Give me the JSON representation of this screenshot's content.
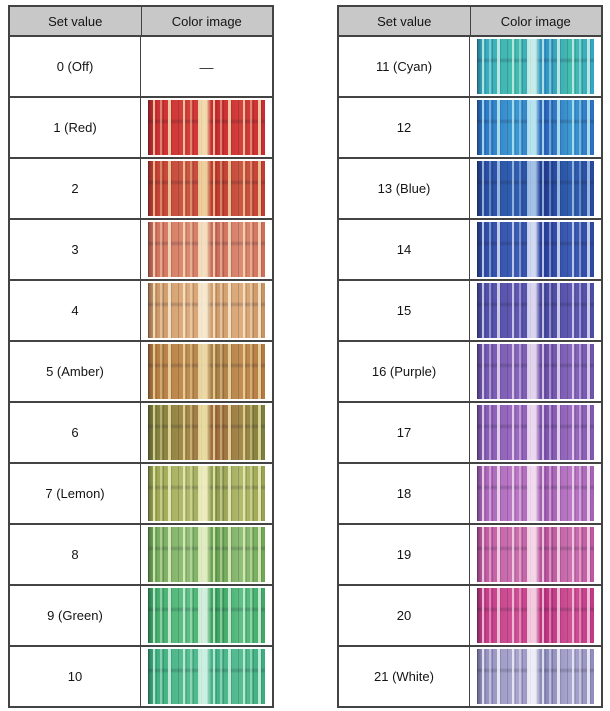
{
  "headers": {
    "set_value": "Set value",
    "color_image": "Color image"
  },
  "style": {
    "header_bg": "#c8c8c8",
    "border": "#434343",
    "text": "#141414",
    "page_bg": "#ffffff"
  },
  "tables": [
    {
      "id": "left",
      "rows": [
        {
          "label": "0 (Off)",
          "placeholder": "—",
          "image": null
        },
        {
          "label": "1 (Red)",
          "image": {
            "colors": [
              "#c92a30",
              "#d4403c",
              "#c92a30"
            ],
            "streak": "#f3e3b4"
          }
        },
        {
          "label": "2",
          "image": {
            "colors": [
              "#c33a30",
              "#cc5844",
              "#bf392f"
            ],
            "streak": "#f0d6a2"
          }
        },
        {
          "label": "3",
          "image": {
            "colors": [
              "#cf6c58",
              "#dd8c72",
              "#ca6a58"
            ],
            "streak": "#f5e3c4"
          }
        },
        {
          "label": "4",
          "image": {
            "colors": [
              "#c79260",
              "#e0ae7e",
              "#cf9c6c"
            ],
            "streak": "#f7ecd4"
          }
        },
        {
          "label": "5 (Amber)",
          "image": {
            "colors": [
              "#b3793f",
              "#c28e52",
              "#a97f46"
            ],
            "streak": "#eedcaa"
          }
        },
        {
          "label": "6",
          "image": {
            "colors": [
              "#79803c",
              "#a38a4a",
              "#a06a3e"
            ],
            "streak": "#ece0a6"
          }
        },
        {
          "label": "7 (Lemon)",
          "image": {
            "colors": [
              "#97a24c",
              "#b3bc6e",
              "#8d9c4e"
            ],
            "streak": "#f1efc2"
          }
        },
        {
          "label": "8",
          "image": {
            "colors": [
              "#6ca654",
              "#92c078",
              "#66a050"
            ],
            "streak": "#e6f0c6"
          }
        },
        {
          "label": "9 (Green)",
          "image": {
            "colors": [
              "#3da864",
              "#5fc186",
              "#3aa25e"
            ],
            "streak": "#d9f2e2"
          }
        },
        {
          "label": "10",
          "image": {
            "colors": [
              "#3aac7c",
              "#58be92",
              "#44b286"
            ],
            "streak": "#d2f2e6"
          }
        }
      ]
    },
    {
      "id": "right",
      "rows": [
        {
          "label": "11 (Cyan)",
          "image": {
            "colors": [
              "#34a6c4",
              "#46bfae",
              "#2f94c6"
            ],
            "streak": "#cff0ea"
          }
        },
        {
          "label": "12",
          "image": {
            "colors": [
              "#2b6ec2",
              "#3e9cd2",
              "#2a62ba"
            ],
            "streak": "#bfeaf2"
          }
        },
        {
          "label": "13 (Blue)",
          "image": {
            "colors": [
              "#27479c",
              "#3161b2",
              "#223c92"
            ],
            "streak": "#aac8ea"
          }
        },
        {
          "label": "14",
          "image": {
            "colors": [
              "#2c48a2",
              "#3e5eb6",
              "#293f9c"
            ],
            "streak": "#d9e1f5"
          }
        },
        {
          "label": "15",
          "image": {
            "colors": [
              "#4a4da6",
              "#6159b2",
              "#46479e"
            ],
            "streak": "#e1ddf3"
          }
        },
        {
          "label": "16 (Purple)",
          "image": {
            "colors": [
              "#6d53ac",
              "#8867bc",
              "#6a4ea6"
            ],
            "streak": "#e9dbf1"
          }
        },
        {
          "label": "17",
          "image": {
            "colors": [
              "#8058b0",
              "#9c6cc0",
              "#7c52ac"
            ],
            "streak": "#f1e0f3"
          }
        },
        {
          "label": "18",
          "image": {
            "colors": [
              "#a661b6",
              "#bc7ac6",
              "#a05cb0"
            ],
            "streak": "#f5e1f1"
          }
        },
        {
          "label": "19",
          "image": {
            "colors": [
              "#be56a0",
              "#cc72b0",
              "#b8529a"
            ],
            "streak": "#f7ddeb"
          }
        },
        {
          "label": "20",
          "image": {
            "colors": [
              "#c23886",
              "#d05296",
              "#bc3280"
            ],
            "streak": "#f5d3e3"
          }
        },
        {
          "label": "21 (White)",
          "image": {
            "colors": [
              "#908dbd",
              "#aaa8ce",
              "#8b89b9"
            ],
            "streak": "#f2f2fa"
          }
        }
      ]
    }
  ]
}
